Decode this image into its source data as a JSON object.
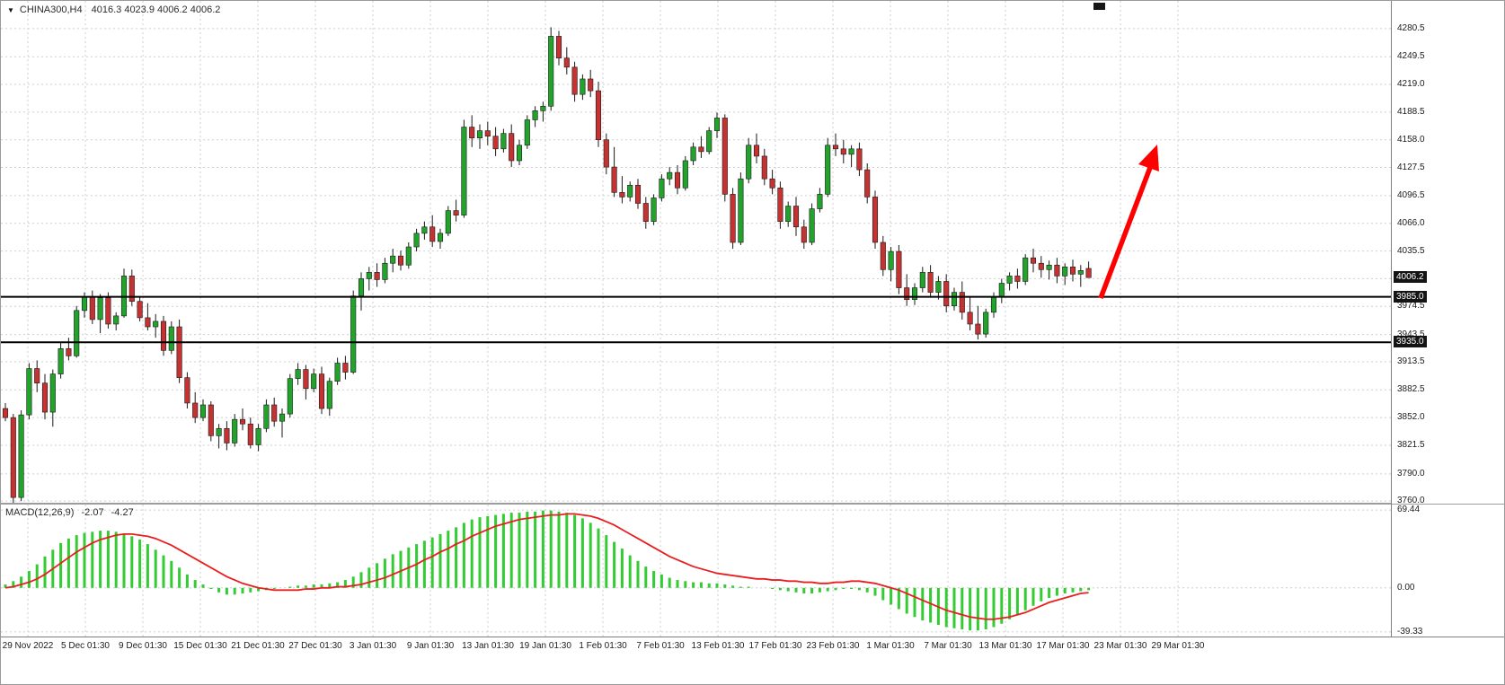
{
  "window": {
    "title_symbol": "CHINA300,H4",
    "title_values": "4016.3 4023.9 4006.2 4006.2"
  },
  "chart_data": {
    "type": "candlestick",
    "symbol": "CHINA300",
    "timeframe": "H4",
    "ohlc_current": {
      "open": 4016.3,
      "high": 4023.9,
      "low": 4006.2,
      "close": 4006.2
    },
    "ylim": [
      3757.2,
      4311.0
    ],
    "grid": true,
    "time_labels": [
      "29 Nov 2022",
      "5 Dec 01:30",
      "9 Dec 01:30",
      "15 Dec 01:30",
      "21 Dec 01:30",
      "27 Dec 01:30",
      "3 Jan 01:30",
      "9 Jan 01:30",
      "13 Jan 01:30",
      "19 Jan 01:30",
      "1 Feb 01:30",
      "7 Feb 01:30",
      "13 Feb 01:30",
      "17 Feb 01:30",
      "23 Feb 01:30",
      "1 Mar 01:30",
      "7 Mar 01:30",
      "13 Mar 01:30",
      "17 Mar 01:30",
      "23 Mar 01:30",
      "29 Mar 01:30"
    ],
    "price_ticks": [
      {
        "v": 4280.5,
        "label": "4280.5"
      },
      {
        "v": 4249.5,
        "label": "4249.5"
      },
      {
        "v": 4219.0,
        "label": "4219.0"
      },
      {
        "v": 4188.5,
        "label": "4188.5"
      },
      {
        "v": 4158.0,
        "label": "4158.0"
      },
      {
        "v": 4127.5,
        "label": "4127.5"
      },
      {
        "v": 4096.5,
        "label": "4096.5"
      },
      {
        "v": 4066.0,
        "label": "4066.0"
      },
      {
        "v": 4035.5,
        "label": "4035.5"
      },
      {
        "v": 4005.0,
        "label": ""
      },
      {
        "v": 3974.5,
        "label": "3974.5"
      },
      {
        "v": 3943.5,
        "label": "3943.5"
      },
      {
        "v": 3913.5,
        "label": "3913.5"
      },
      {
        "v": 3882.5,
        "label": "3882.5"
      },
      {
        "v": 3852.0,
        "label": "3852.0"
      },
      {
        "v": 3821.5,
        "label": "3821.5"
      },
      {
        "v": 3790.0,
        "label": "3790.0"
      },
      {
        "v": 3760.0,
        "label": "3760.0"
      }
    ],
    "hlines": [
      {
        "v": 3985.0,
        "label": "3985.0"
      },
      {
        "v": 3935.0,
        "label": "3935.0"
      }
    ],
    "price_badge": {
      "v": 4006.2,
      "label": "4006.2"
    },
    "candles": [
      [
        3862,
        3868,
        3848,
        3852
      ],
      [
        3852,
        3856,
        3758,
        3764
      ],
      [
        3764,
        3860,
        3760,
        3855
      ],
      [
        3855,
        3912,
        3850,
        3906
      ],
      [
        3906,
        3915,
        3880,
        3890
      ],
      [
        3890,
        3900,
        3850,
        3858
      ],
      [
        3858,
        3905,
        3842,
        3900
      ],
      [
        3900,
        3935,
        3895,
        3928
      ],
      [
        3928,
        3940,
        3915,
        3920
      ],
      [
        3920,
        3975,
        3918,
        3970
      ],
      [
        3970,
        3990,
        3962,
        3985
      ],
      [
        3985,
        3992,
        3955,
        3960
      ],
      [
        3960,
        3988,
        3945,
        3984
      ],
      [
        3984,
        3990,
        3950,
        3955
      ],
      [
        3955,
        3968,
        3948,
        3964
      ],
      [
        3964,
        4016,
        3962,
        4008
      ],
      [
        4008,
        4015,
        3975,
        3980
      ],
      [
        3980,
        3985,
        3958,
        3962
      ],
      [
        3962,
        3978,
        3948,
        3952
      ],
      [
        3952,
        3966,
        3940,
        3958
      ],
      [
        3958,
        3964,
        3920,
        3926
      ],
      [
        3926,
        3958,
        3922,
        3952
      ],
      [
        3952,
        3960,
        3890,
        3896
      ],
      [
        3896,
        3902,
        3862,
        3868
      ],
      [
        3868,
        3880,
        3846,
        3852
      ],
      [
        3852,
        3872,
        3848,
        3866
      ],
      [
        3866,
        3870,
        3826,
        3832
      ],
      [
        3832,
        3845,
        3818,
        3840
      ],
      [
        3840,
        3848,
        3816,
        3824
      ],
      [
        3824,
        3856,
        3820,
        3850
      ],
      [
        3850,
        3862,
        3838,
        3845
      ],
      [
        3845,
        3852,
        3818,
        3822
      ],
      [
        3822,
        3845,
        3815,
        3840
      ],
      [
        3840,
        3872,
        3836,
        3866
      ],
      [
        3866,
        3874,
        3842,
        3848
      ],
      [
        3848,
        3862,
        3830,
        3856
      ],
      [
        3856,
        3900,
        3852,
        3895
      ],
      [
        3895,
        3912,
        3888,
        3905
      ],
      [
        3905,
        3910,
        3872,
        3884
      ],
      [
        3884,
        3906,
        3880,
        3900
      ],
      [
        3900,
        3908,
        3856,
        3862
      ],
      [
        3862,
        3896,
        3854,
        3892
      ],
      [
        3892,
        3918,
        3888,
        3912
      ],
      [
        3912,
        3920,
        3894,
        3902
      ],
      [
        3902,
        3992,
        3900,
        3986
      ],
      [
        3986,
        4012,
        3970,
        4005
      ],
      [
        4005,
        4018,
        3992,
        4012
      ],
      [
        4012,
        4022,
        3996,
        4004
      ],
      [
        4004,
        4028,
        4000,
        4022
      ],
      [
        4022,
        4038,
        4012,
        4030
      ],
      [
        4030,
        4036,
        4014,
        4020
      ],
      [
        4020,
        4045,
        4016,
        4040
      ],
      [
        4040,
        4060,
        4035,
        4055
      ],
      [
        4055,
        4068,
        4048,
        4062
      ],
      [
        4062,
        4075,
        4040,
        4046
      ],
      [
        4046,
        4060,
        4038,
        4055
      ],
      [
        4055,
        4085,
        4052,
        4080
      ],
      [
        4080,
        4092,
        4068,
        4075
      ],
      [
        4075,
        4180,
        4072,
        4172
      ],
      [
        4172,
        4185,
        4150,
        4160
      ],
      [
        4160,
        4175,
        4148,
        4168
      ],
      [
        4168,
        4178,
        4152,
        4162
      ],
      [
        4162,
        4172,
        4140,
        4148
      ],
      [
        4148,
        4170,
        4144,
        4165
      ],
      [
        4165,
        4175,
        4128,
        4135
      ],
      [
        4135,
        4158,
        4130,
        4152
      ],
      [
        4152,
        4185,
        4148,
        4180
      ],
      [
        4180,
        4195,
        4172,
        4190
      ],
      [
        4190,
        4200,
        4178,
        4195
      ],
      [
        4195,
        4282,
        4190,
        4272
      ],
      [
        4272,
        4278,
        4240,
        4248
      ],
      [
        4248,
        4260,
        4230,
        4238
      ],
      [
        4238,
        4244,
        4200,
        4208
      ],
      [
        4208,
        4230,
        4202,
        4225
      ],
      [
        4225,
        4235,
        4205,
        4212
      ],
      [
        4212,
        4222,
        4150,
        4158
      ],
      [
        4158,
        4165,
        4120,
        4128
      ],
      [
        4128,
        4150,
        4095,
        4100
      ],
      [
        4100,
        4118,
        4088,
        4095
      ],
      [
        4095,
        4112,
        4090,
        4108
      ],
      [
        4108,
        4115,
        4082,
        4088
      ],
      [
        4088,
        4095,
        4060,
        4068
      ],
      [
        4068,
        4098,
        4064,
        4094
      ],
      [
        4094,
        4120,
        4090,
        4115
      ],
      [
        4115,
        4128,
        4108,
        4122
      ],
      [
        4122,
        4130,
        4098,
        4105
      ],
      [
        4105,
        4140,
        4102,
        4135
      ],
      [
        4135,
        4155,
        4130,
        4150
      ],
      [
        4150,
        4162,
        4138,
        4145
      ],
      [
        4145,
        4172,
        4142,
        4168
      ],
      [
        4168,
        4188,
        4160,
        4182
      ],
      [
        4182,
        4186,
        4090,
        4098
      ],
      [
        4098,
        4105,
        4038,
        4045
      ],
      [
        4045,
        4122,
        4042,
        4115
      ],
      [
        4115,
        4160,
        4110,
        4152
      ],
      [
        4152,
        4165,
        4132,
        4140
      ],
      [
        4140,
        4148,
        4108,
        4115
      ],
      [
        4115,
        4125,
        4098,
        4105
      ],
      [
        4105,
        4112,
        4060,
        4068
      ],
      [
        4068,
        4090,
        4062,
        4085
      ],
      [
        4085,
        4095,
        4052,
        4062
      ],
      [
        4062,
        4070,
        4038,
        4045
      ],
      [
        4045,
        4088,
        4042,
        4082
      ],
      [
        4082,
        4105,
        4078,
        4098
      ],
      [
        4098,
        4160,
        4095,
        4152
      ],
      [
        4152,
        4165,
        4140,
        4148
      ],
      [
        4148,
        4158,
        4132,
        4142
      ],
      [
        4142,
        4152,
        4128,
        4148
      ],
      [
        4148,
        4155,
        4118,
        4125
      ],
      [
        4125,
        4132,
        4088,
        4095
      ],
      [
        4095,
        4102,
        4038,
        4045
      ],
      [
        4045,
        4052,
        4008,
        4015
      ],
      [
        4015,
        4040,
        4002,
        4035
      ],
      [
        4035,
        4042,
        3988,
        3995
      ],
      [
        3995,
        4010,
        3975,
        3982
      ],
      [
        3982,
        4000,
        3976,
        3995
      ],
      [
        3995,
        4018,
        3990,
        4012
      ],
      [
        4012,
        4020,
        3984,
        3990
      ],
      [
        3990,
        4008,
        3982,
        4002
      ],
      [
        4002,
        4010,
        3968,
        3975
      ],
      [
        3975,
        3995,
        3970,
        3990
      ],
      [
        3990,
        4002,
        3960,
        3968
      ],
      [
        3968,
        3985,
        3948,
        3955
      ],
      [
        3955,
        3975,
        3938,
        3944
      ],
      [
        3944,
        3972,
        3940,
        3968
      ],
      [
        3968,
        3990,
        3962,
        3985
      ],
      [
        3985,
        4005,
        3978,
        4000
      ],
      [
        4000,
        4012,
        3992,
        4008
      ],
      [
        4008,
        4016,
        3994,
        4002
      ],
      [
        4002,
        4032,
        3998,
        4028
      ],
      [
        4028,
        4038,
        4012,
        4022
      ],
      [
        4022,
        4030,
        4006,
        4015
      ],
      [
        4015,
        4025,
        4004,
        4020
      ],
      [
        4020,
        4028,
        4000,
        4008
      ],
      [
        4008,
        4022,
        3998,
        4018
      ],
      [
        4018,
        4026,
        4002,
        4010
      ],
      [
        4010,
        4020,
        3996,
        4014
      ],
      [
        4016.3,
        4023.9,
        4006.2,
        4006.2
      ]
    ],
    "macd": {
      "title": "MACD(12,26,9)",
      "macd_value": "-2.07",
      "signal_value": "-4.27",
      "ylim": [
        -43.4,
        74.3
      ],
      "ticks": [
        {
          "v": 69.44,
          "label": "69.44"
        },
        {
          "v": 0,
          "label": "0.00"
        },
        {
          "v": -39.33,
          "label": "-39.33"
        }
      ],
      "histogram": [
        3,
        6,
        10,
        15,
        21,
        28,
        34,
        40,
        44,
        47,
        49,
        50,
        51,
        51,
        50,
        48,
        46,
        43,
        39,
        34,
        29,
        24,
        18,
        12,
        7,
        3,
        -1,
        -4,
        -6,
        -6,
        -5,
        -4,
        -3,
        -2,
        -1,
        0,
        1,
        2,
        2,
        3,
        3,
        4,
        5,
        7,
        10,
        14,
        18,
        22,
        26,
        30,
        33,
        36,
        39,
        42,
        45,
        48,
        51,
        54,
        58,
        61,
        63,
        64,
        65,
        66,
        67,
        67,
        68,
        68,
        69,
        69,
        68,
        67,
        65,
        62,
        58,
        53,
        47,
        41,
        35,
        29,
        24,
        19,
        15,
        12,
        9,
        7,
        6,
        5,
        5,
        4,
        4,
        3,
        2,
        1,
        1,
        0,
        0,
        -1,
        -2,
        -3,
        -4,
        -5,
        -5,
        -4,
        -3,
        -2,
        -1,
        -1,
        -2,
        -4,
        -7,
        -11,
        -15,
        -19,
        -23,
        -26,
        -29,
        -31,
        -33,
        -35,
        -36,
        -37,
        -38,
        -38,
        -37,
        -35,
        -32,
        -28,
        -24,
        -20,
        -16,
        -12,
        -9,
        -7,
        -5,
        -4,
        -3,
        -2.07
      ],
      "signal": [
        0,
        1,
        3,
        5,
        8,
        12,
        17,
        22,
        27,
        32,
        36,
        40,
        43,
        45,
        47,
        48,
        48,
        47,
        46,
        44,
        41,
        38,
        34,
        30,
        26,
        22,
        18,
        14,
        10,
        7,
        4,
        2,
        0,
        -1,
        -2,
        -2,
        -2,
        -2,
        -1,
        -1,
        0,
        0,
        1,
        1,
        2,
        3,
        5,
        7,
        9,
        12,
        15,
        18,
        21,
        25,
        28,
        32,
        35,
        39,
        42,
        46,
        49,
        52,
        55,
        57,
        59,
        61,
        62,
        63,
        64,
        65,
        65,
        66,
        66,
        65,
        64,
        62,
        59,
        56,
        52,
        48,
        44,
        40,
        36,
        32,
        28,
        25,
        22,
        19,
        17,
        15,
        13,
        12,
        11,
        10,
        9,
        8,
        8,
        7,
        7,
        6,
        6,
        5,
        5,
        4,
        4,
        5,
        5,
        6,
        6,
        5,
        4,
        2,
        0,
        -2,
        -5,
        -8,
        -11,
        -14,
        -17,
        -20,
        -22,
        -24,
        -26,
        -27,
        -28,
        -28,
        -27,
        -26,
        -24,
        -22,
        -19,
        -16,
        -13,
        -11,
        -9,
        -7,
        -5,
        -4.27
      ]
    },
    "annotation_arrow": {
      "color": "#ff0000",
      "tail": [
        1224,
        331
      ],
      "shaft_end": [
        1280,
        183
      ],
      "head": [
        [
          1287,
          160
        ],
        [
          1289,
          190
        ],
        [
          1266,
          182
        ]
      ]
    },
    "colors": {
      "up": "#22a32b",
      "down": "#c43232",
      "outline": "#1a1a1a",
      "grid": "#cfcfcf",
      "hist": "#33cc33",
      "signal": "#e81f1f",
      "levels": "#000000",
      "badge_bg": "#141414",
      "badge_fg": "#ffffff"
    }
  }
}
